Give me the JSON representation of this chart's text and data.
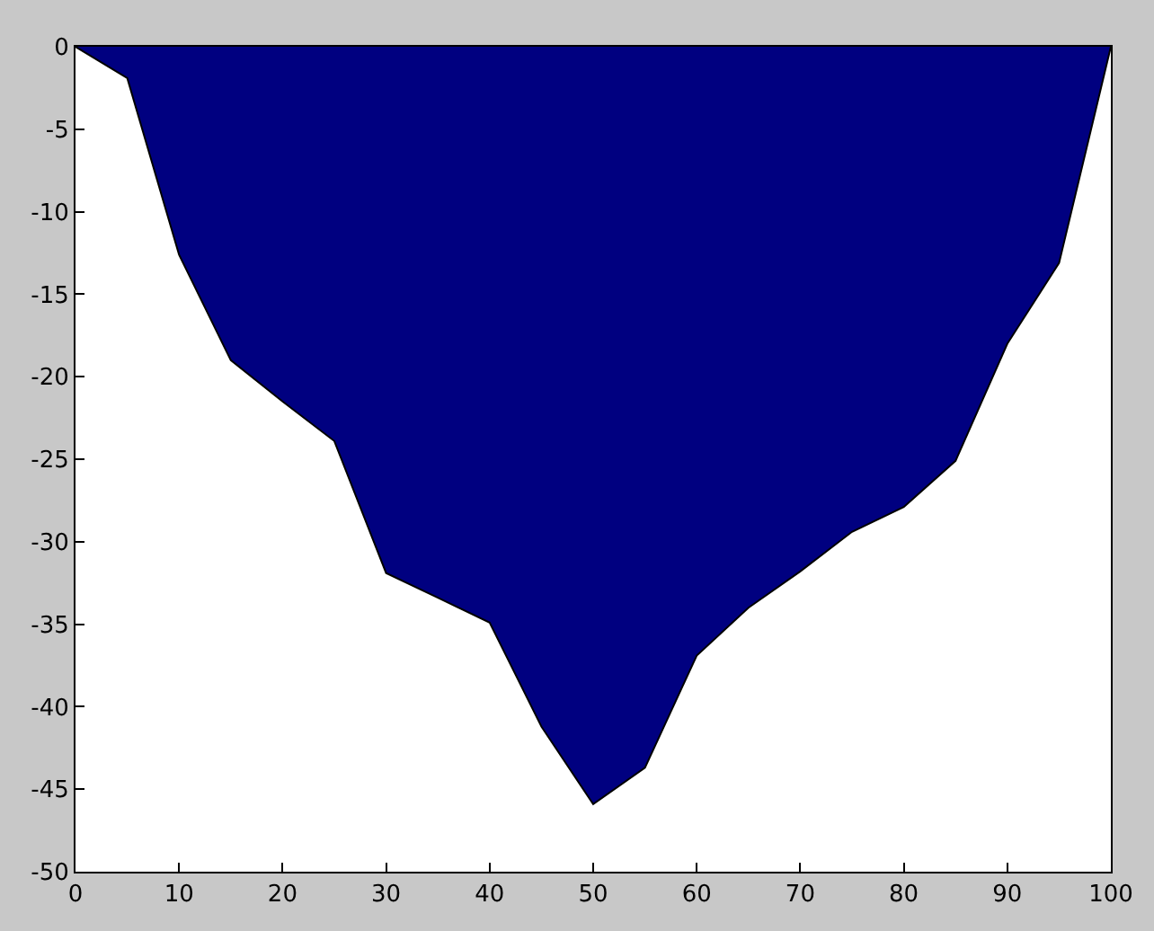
{
  "chart_data": {
    "type": "area",
    "x": [
      0,
      5,
      10,
      15,
      20,
      25,
      30,
      35,
      40,
      45,
      50,
      55,
      60,
      65,
      70,
      75,
      80,
      85,
      90,
      95,
      100
    ],
    "series": [
      {
        "color": "#000080",
        "values": [
          0,
          -1.9,
          -12.6,
          -19,
          -21.5,
          -23.9,
          -31.9,
          -33.4,
          -34.9,
          -41.2,
          -45.9,
          -43.7,
          -36.9,
          -34,
          -31.8,
          -29.4,
          -27.9,
          -25.1,
          -18,
          -13.1,
          0
        ]
      }
    ],
    "xlim": [
      0,
      100
    ],
    "xticks": [
      0,
      10,
      20,
      30,
      40,
      50,
      60,
      70,
      80,
      90,
      100
    ],
    "ylim": [
      -50,
      0
    ],
    "yticks": [
      -50,
      -45,
      -40,
      -35,
      -30,
      -25,
      -20,
      -15,
      -10,
      -5,
      0
    ]
  }
}
